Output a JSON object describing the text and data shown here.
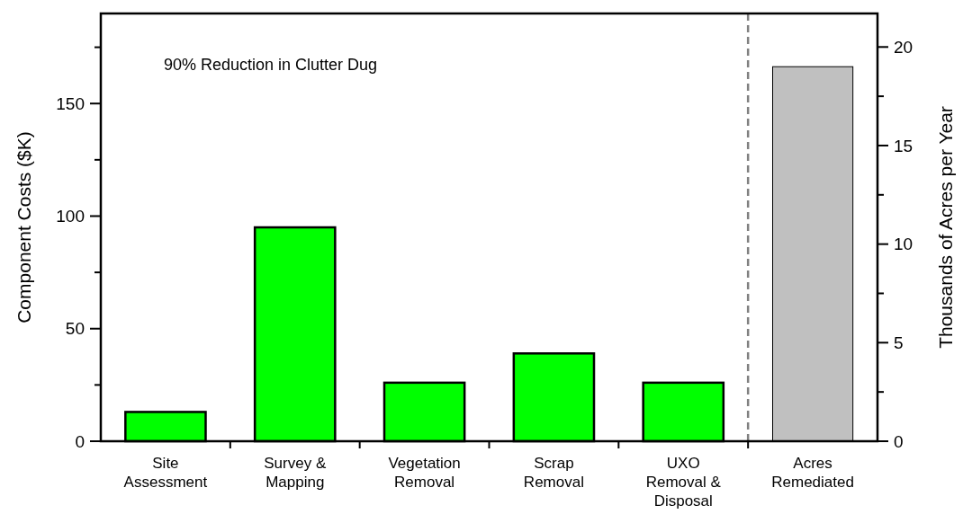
{
  "chart_data": {
    "type": "bar",
    "categories": [
      "Site Assessment",
      "Survey & Mapping",
      "Vegetation Removal",
      "Scrap Removal",
      "UXO Removal & Disposal",
      "Acres Remediated"
    ],
    "series": [
      {
        "color": "#00ff00",
        "values": [
          13,
          95,
          26,
          39,
          26,
          null
        ]
      },
      {
        "color": "#c0c0c0",
        "axis": "y2",
        "values": [
          null,
          null,
          null,
          null,
          null,
          19
        ]
      }
    ],
    "ylabel": "Component Costs ($K)",
    "y2label": "Thousands of Acres per Year",
    "ylim": [
      0,
      190
    ],
    "yticks": [
      0,
      {
        "value": 25,
        "label": null
      },
      50,
      {
        "value": 75,
        "label": null
      },
      100,
      {
        "value": 125,
        "label": null
      },
      150,
      {
        "value": 175,
        "label": null
      }
    ],
    "y2lim": [
      0,
      21.7
    ],
    "y2ticks": [
      0,
      {
        "value": 2.5,
        "label": null
      },
      5,
      {
        "value": 7.5,
        "label": null
      },
      10,
      {
        "value": 12.5,
        "label": null
      },
      15,
      {
        "value": 17.5,
        "label": null
      },
      20
    ],
    "annotations": [
      "90% Reduction in Clutter Dug"
    ],
    "grid": false
  }
}
